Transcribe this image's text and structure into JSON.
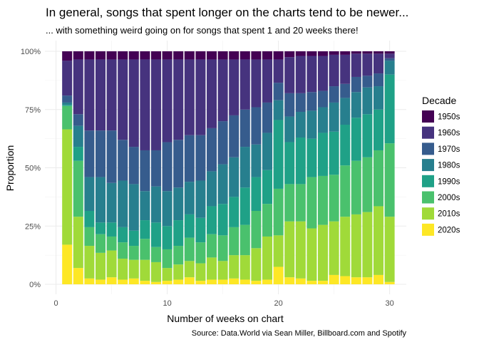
{
  "chart_data": {
    "type": "bar",
    "stacked": true,
    "normalized": true,
    "title": "In general, songs that spent longer on the charts tend to be newer...",
    "subtitle": "... with something weird going on for songs that spent 1 and 20 weeks there!",
    "xlabel": "Number of weeks on chart",
    "ylabel": "Proportion",
    "caption": "Source: Data.World via Sean Miller, Billboard.com and Spotify",
    "xlim": [
      -1,
      31.5
    ],
    "ylim": [
      0,
      1
    ],
    "x_ticks": [
      0,
      10,
      20,
      30
    ],
    "y_ticks": [
      0,
      0.25,
      0.5,
      0.75,
      1
    ],
    "y_tick_labels": [
      "0%",
      "25%",
      "50%",
      "75%",
      "100%"
    ],
    "grid": true,
    "legend": {
      "title": "Decade",
      "position": "right"
    },
    "x": [
      1,
      2,
      3,
      4,
      5,
      6,
      7,
      8,
      9,
      10,
      11,
      12,
      13,
      14,
      15,
      16,
      17,
      18,
      19,
      20,
      21,
      22,
      23,
      24,
      25,
      26,
      27,
      28,
      29,
      30
    ],
    "stack_order": "first series at top",
    "series": [
      {
        "name": "1950s",
        "color": "#440154",
        "values": [
          0.04,
          0.035,
          0.035,
          0.035,
          0.035,
          0.035,
          0.035,
          0.035,
          0.035,
          0.035,
          0.035,
          0.035,
          0.035,
          0.035,
          0.035,
          0.035,
          0.035,
          0.035,
          0.035,
          0.035,
          0.025,
          0.02,
          0.02,
          0.02,
          0.015,
          0.015,
          0.01,
          0.01,
          0.01,
          0.01
        ]
      },
      {
        "name": "1960s",
        "color": "#46337E",
        "values": [
          0.15,
          0.235,
          0.305,
          0.305,
          0.305,
          0.345,
          0.375,
          0.39,
          0.39,
          0.355,
          0.345,
          0.325,
          0.325,
          0.295,
          0.265,
          0.24,
          0.215,
          0.205,
          0.185,
          0.1,
          0.155,
          0.16,
          0.155,
          0.15,
          0.135,
          0.125,
          0.1,
          0.095,
          0.085,
          0.02
        ]
      },
      {
        "name": "1970s",
        "color": "#365C8D",
        "values": [
          0.03,
          0.05,
          0.2,
          0.2,
          0.225,
          0.175,
          0.16,
          0.175,
          0.155,
          0.21,
          0.205,
          0.2,
          0.195,
          0.185,
          0.185,
          0.18,
          0.16,
          0.16,
          0.13,
          0.075,
          0.1,
          0.08,
          0.08,
          0.07,
          0.07,
          0.06,
          0.065,
          0.05,
          0.055,
          0.01
        ]
      },
      {
        "name": "1980s",
        "color": "#277F8E",
        "values": [
          0.01,
          0.09,
          0.145,
          0.195,
          0.17,
          0.2,
          0.2,
          0.125,
          0.155,
          0.15,
          0.14,
          0.14,
          0.16,
          0.15,
          0.17,
          0.17,
          0.175,
          0.14,
          0.16,
          0.085,
          0.11,
          0.11,
          0.12,
          0.11,
          0.125,
          0.115,
          0.11,
          0.115,
          0.1,
          0.06
        ]
      },
      {
        "name": "1990s",
        "color": "#1FA187",
        "values": [
          0.005,
          0.06,
          0.07,
          0.05,
          0.06,
          0.065,
          0.065,
          0.08,
          0.105,
          0.1,
          0.11,
          0.1,
          0.105,
          0.12,
          0.135,
          0.13,
          0.16,
          0.145,
          0.145,
          0.295,
          0.18,
          0.2,
          0.165,
          0.185,
          0.185,
          0.175,
          0.185,
          0.185,
          0.175,
          0.295
        ]
      },
      {
        "name": "2000s",
        "color": "#4AC16D",
        "values": [
          0.1,
          0.24,
          0.08,
          0.08,
          0.06,
          0.07,
          0.06,
          0.09,
          0.065,
          0.08,
          0.08,
          0.1,
          0.09,
          0.1,
          0.11,
          0.12,
          0.13,
          0.16,
          0.14,
          0.2,
          0.16,
          0.16,
          0.22,
          0.21,
          0.2,
          0.22,
          0.23,
          0.235,
          0.24,
          0.315
        ]
      },
      {
        "name": "2010s",
        "color": "#A0DA39",
        "values": [
          0.495,
          0.22,
          0.14,
          0.115,
          0.115,
          0.09,
          0.08,
          0.09,
          0.085,
          0.055,
          0.065,
          0.07,
          0.075,
          0.095,
          0.08,
          0.1,
          0.105,
          0.14,
          0.185,
          0.135,
          0.24,
          0.245,
          0.225,
          0.24,
          0.23,
          0.255,
          0.27,
          0.28,
          0.295,
          0.28
        ]
      },
      {
        "name": "2020s",
        "color": "#FDE725",
        "values": [
          0.17,
          0.07,
          0.025,
          0.02,
          0.03,
          0.02,
          0.025,
          0.015,
          0.01,
          0.015,
          0.02,
          0.03,
          0.015,
          0.02,
          0.02,
          0.025,
          0.02,
          0.015,
          0.02,
          0.075,
          0.03,
          0.025,
          0.015,
          0.015,
          0.04,
          0.035,
          0.03,
          0.03,
          0.04,
          0.01
        ]
      }
    ]
  }
}
